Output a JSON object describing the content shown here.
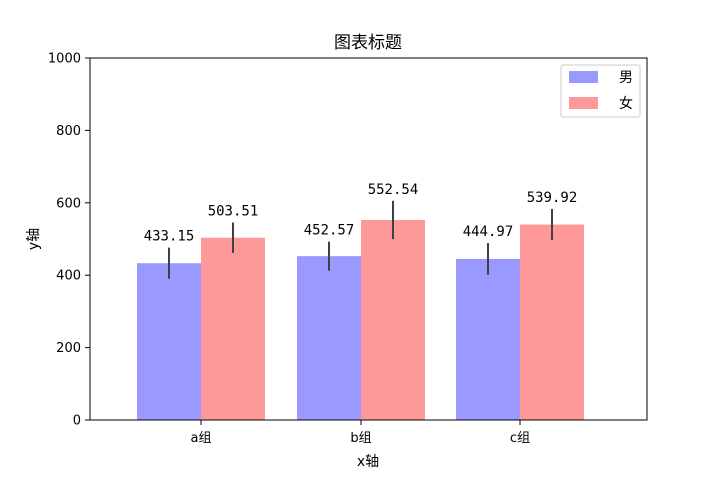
{
  "chart_data": {
    "type": "bar",
    "title": "图表标题",
    "xlabel": "x轴",
    "ylabel": "y轴",
    "categories": [
      "a组",
      "b组",
      "c组"
    ],
    "ylim": [
      0,
      1000
    ],
    "yticks": [
      0,
      200,
      400,
      600,
      800,
      1000
    ],
    "grid": false,
    "legend_position": "top-right",
    "series": [
      {
        "name": "男",
        "color": "#9999ff",
        "values": [
          433.15,
          452.57,
          444.97
        ],
        "labels": [
          "433.15",
          "452.57",
          "444.97"
        ],
        "errors": [
          43,
          40,
          44
        ]
      },
      {
        "name": "女",
        "color": "#ff9999",
        "values": [
          503.51,
          552.54,
          539.92
        ],
        "labels": [
          "503.51",
          "552.54",
          "539.92"
        ],
        "errors": [
          42,
          53,
          43
        ]
      }
    ],
    "error_color": "#404040"
  }
}
